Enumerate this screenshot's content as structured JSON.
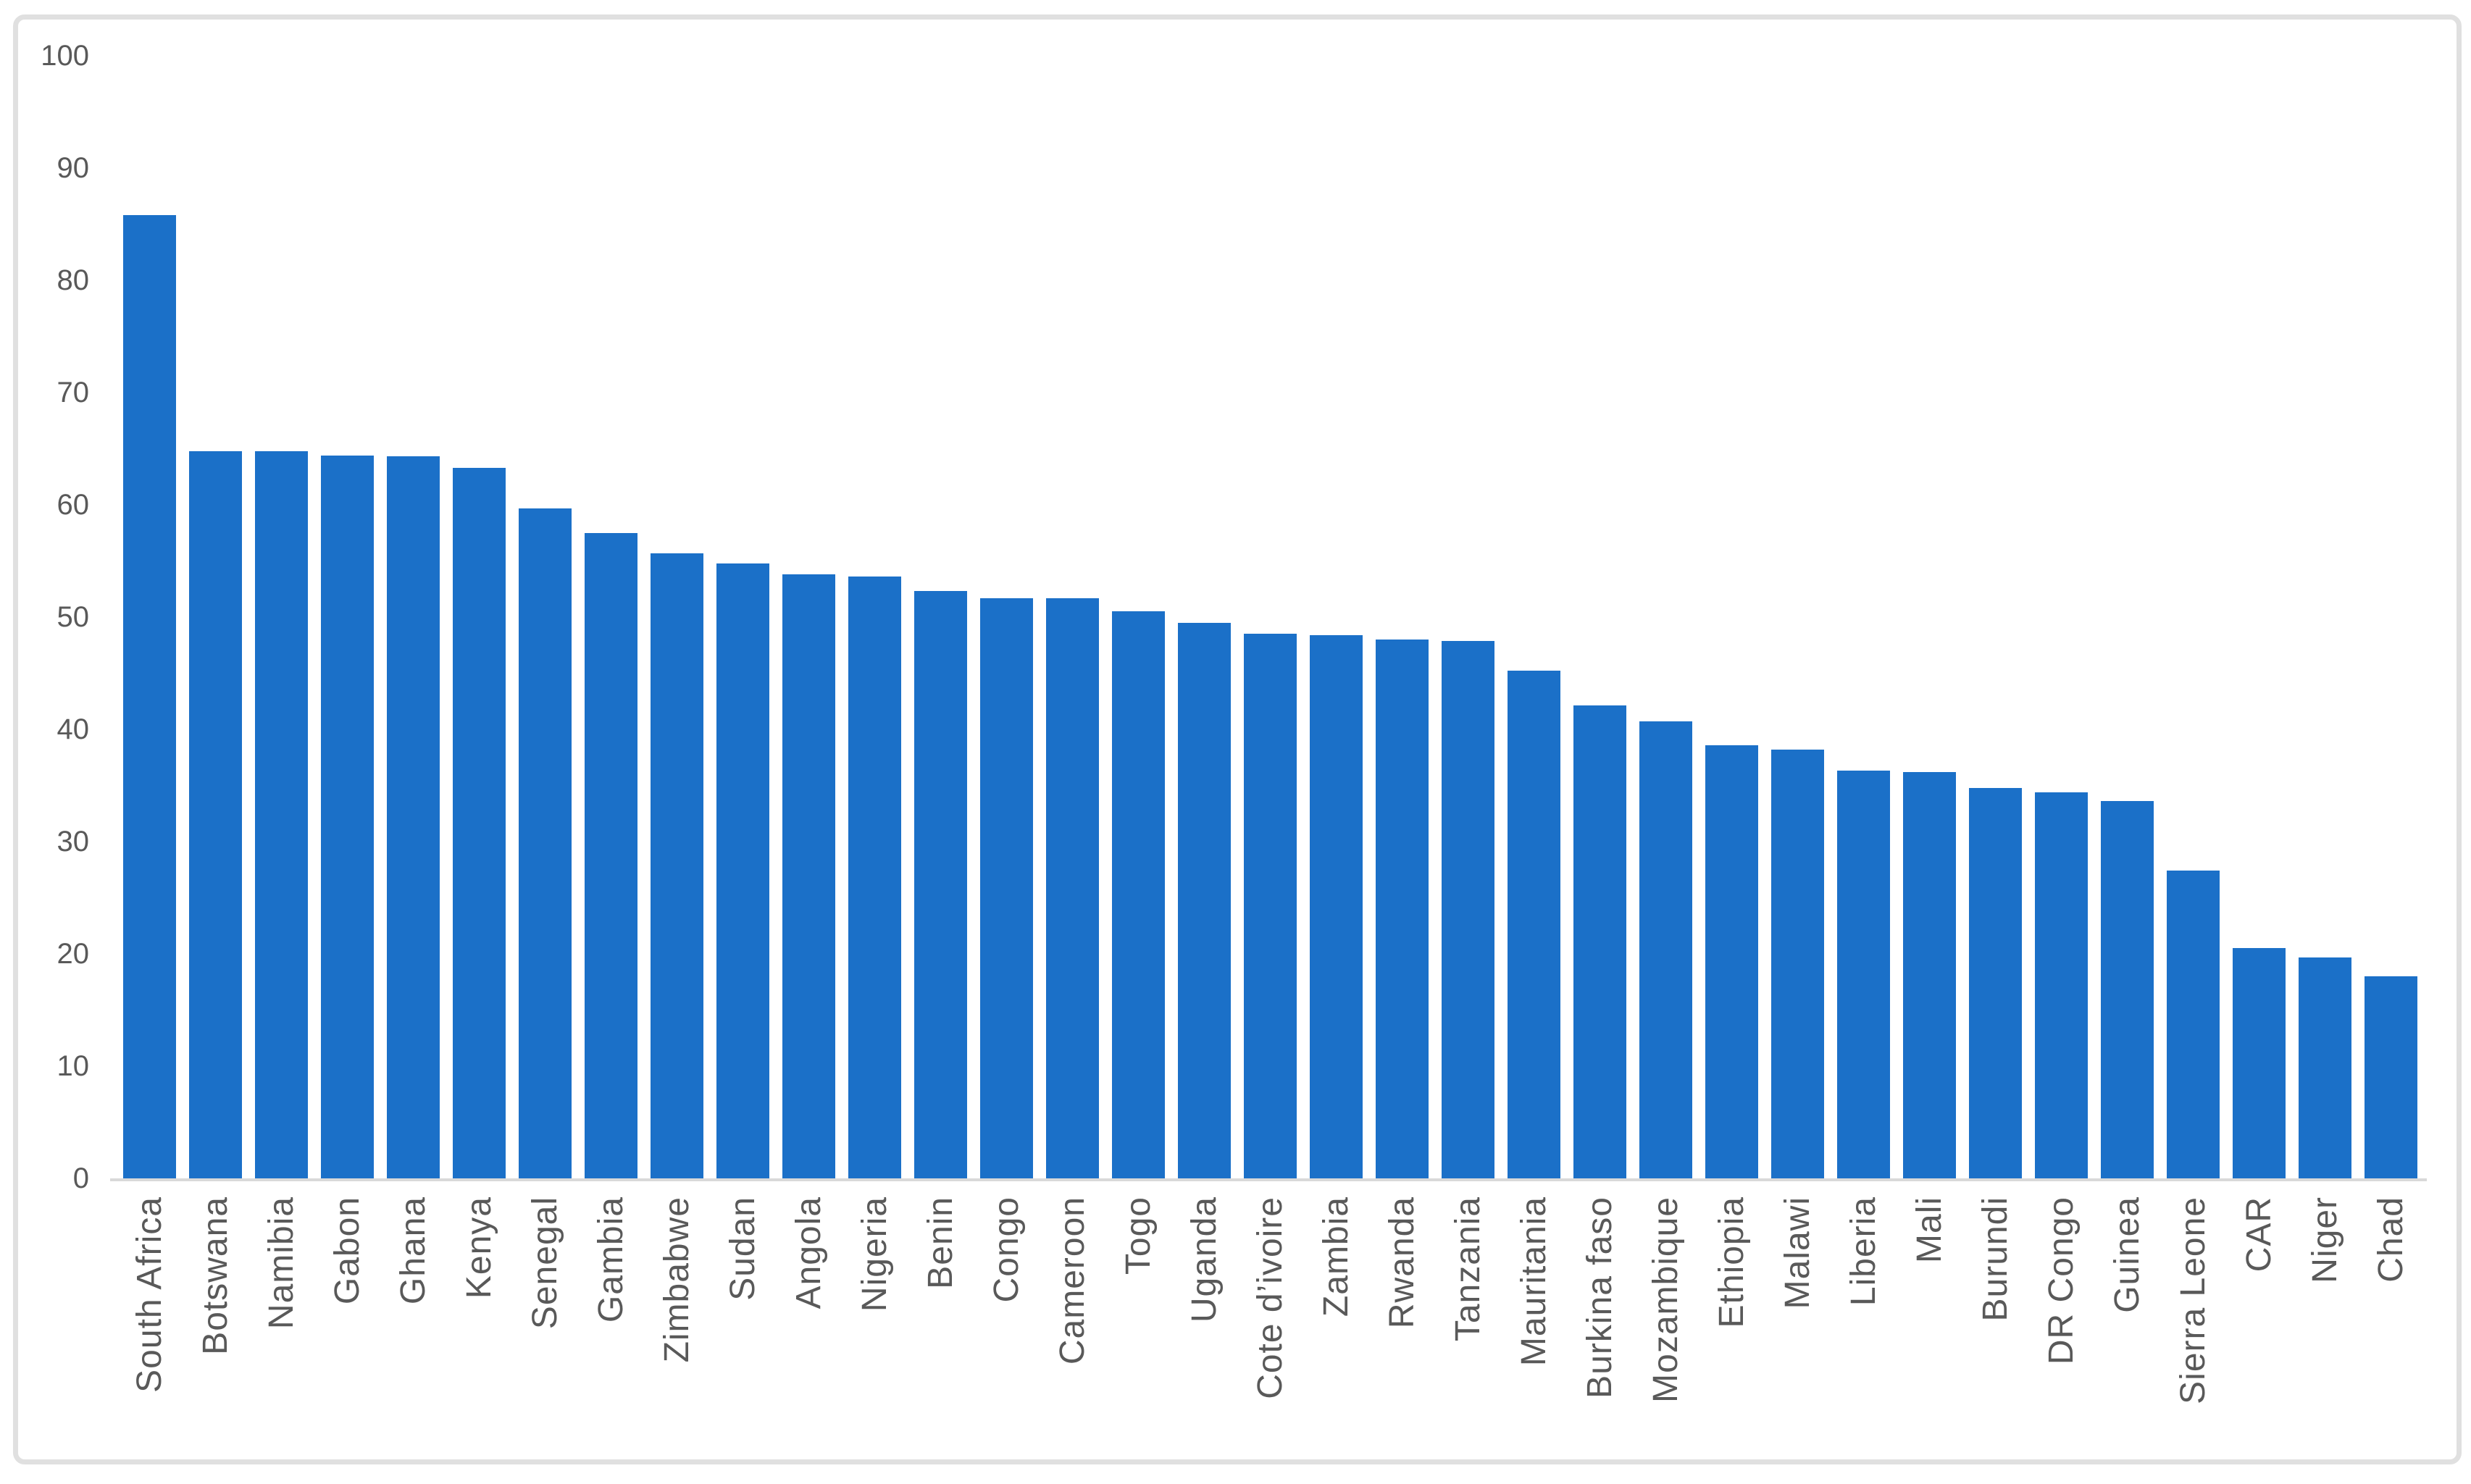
{
  "chart_data": {
    "type": "bar",
    "title": "",
    "categories": [
      "South Africa",
      "Botswana",
      "Namibia",
      "Gabon",
      "Ghana",
      "Kenya",
      "Senegal",
      "Gambia",
      "Zimbabwe",
      "Sudan",
      "Angola",
      "Nigeria",
      "Benin",
      "Congo",
      "Cameroon",
      "Togo",
      "Uganda",
      "Cote d’ivoire",
      "Zambia",
      "Rwanda",
      "Tanzania",
      "Mauritania",
      "Burkina faso",
      "Mozambique",
      "Ethiopia",
      "Malawi",
      "Liberia",
      "Mali",
      "Burundi",
      "DR Congo",
      "Guinea",
      "Sierra Leone",
      "CAR",
      "Niger",
      "Chad"
    ],
    "values": [
      85.8,
      64.8,
      64.8,
      64.4,
      64.3,
      63.3,
      59.7,
      57.5,
      55.7,
      54.8,
      53.8,
      53.6,
      52.3,
      51.7,
      51.7,
      50.5,
      49.5,
      48.5,
      48.4,
      48.0,
      47.9,
      45.2,
      42.1,
      40.7,
      38.6,
      38.2,
      36.3,
      36.2,
      34.8,
      34.4,
      33.6,
      27.4,
      20.5,
      19.7,
      18.0
    ],
    "xlabel": "",
    "ylabel": "",
    "ylim": [
      0,
      100
    ],
    "y_ticks": [
      0,
      10,
      20,
      30,
      40,
      50,
      60,
      70,
      80,
      90,
      100
    ],
    "grid": false,
    "legend": "none",
    "colors": {
      "bar": "#1b70c8",
      "axis_line": "#d9d9d9",
      "tick_label": "#595959",
      "category_label": "#595959",
      "frame_border": "#e0e0e0",
      "background": "#ffffff"
    }
  }
}
